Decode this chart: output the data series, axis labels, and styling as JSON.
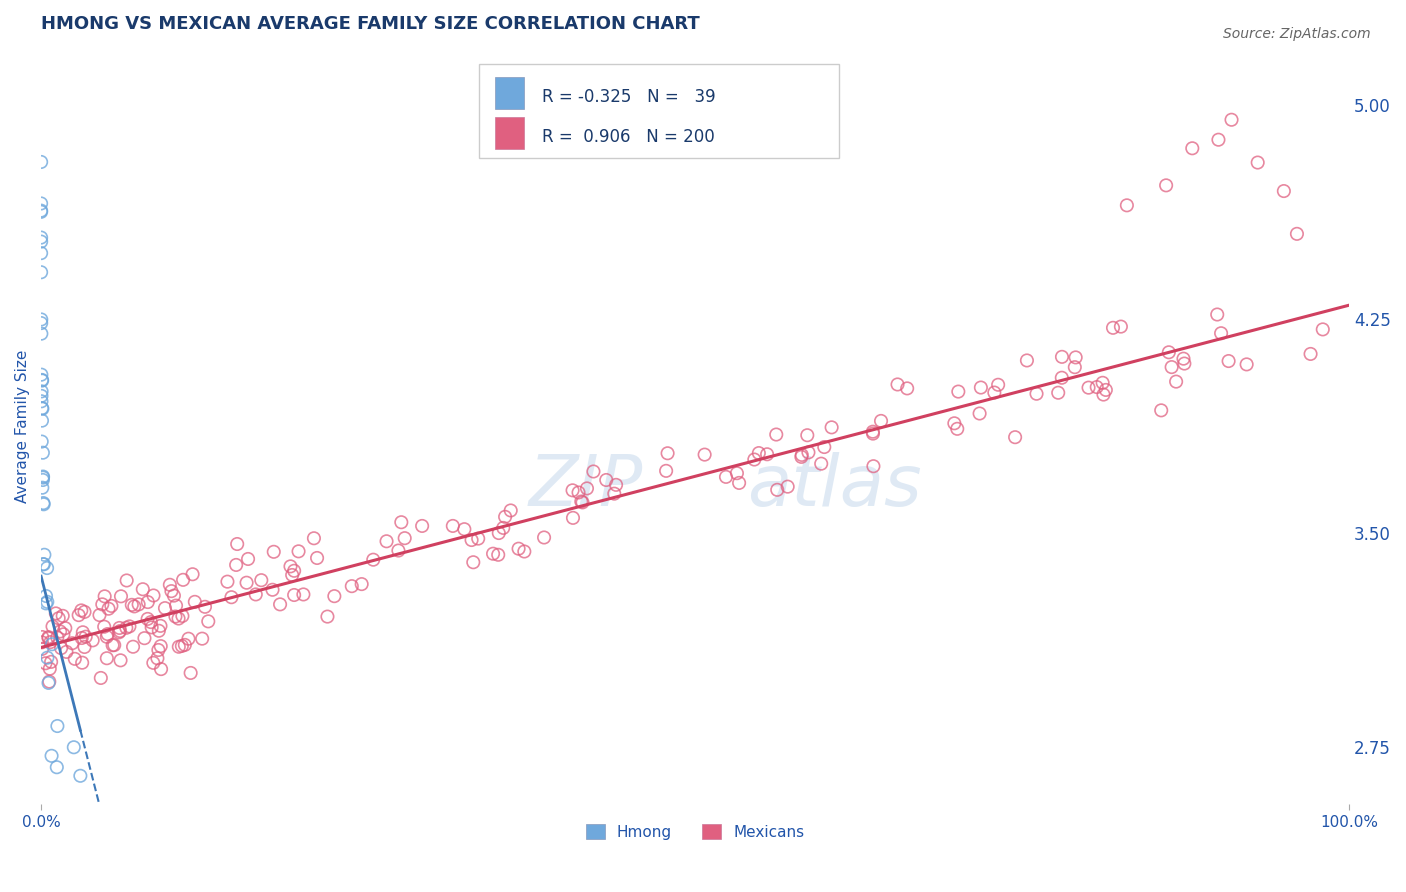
{
  "title": "HMONG VS MEXICAN AVERAGE FAMILY SIZE CORRELATION CHART",
  "source_text": "Source: ZipAtlas.com",
  "ylabel": "Average Family Size",
  "xlim": [
    0.0,
    100.0
  ],
  "ylim": [
    2.55,
    5.2
  ],
  "right_yticks": [
    2.75,
    3.5,
    4.25,
    5.0
  ],
  "watermark_line1": "ZIP",
  "watermark_line2": "atlas",
  "hmong_R": -0.325,
  "hmong_N": 39,
  "mexican_R": 0.906,
  "mexican_N": 200,
  "hmong_color": "#6fa8dc",
  "mexican_color": "#e06080",
  "hmong_line_color": "#3d78b8",
  "mexican_line_color": "#d04060",
  "title_color": "#1a3a6b",
  "axis_label_color": "#2255aa",
  "right_tick_color": "#2255aa",
  "grid_color": "#cccccc",
  "background_color": "#ffffff"
}
